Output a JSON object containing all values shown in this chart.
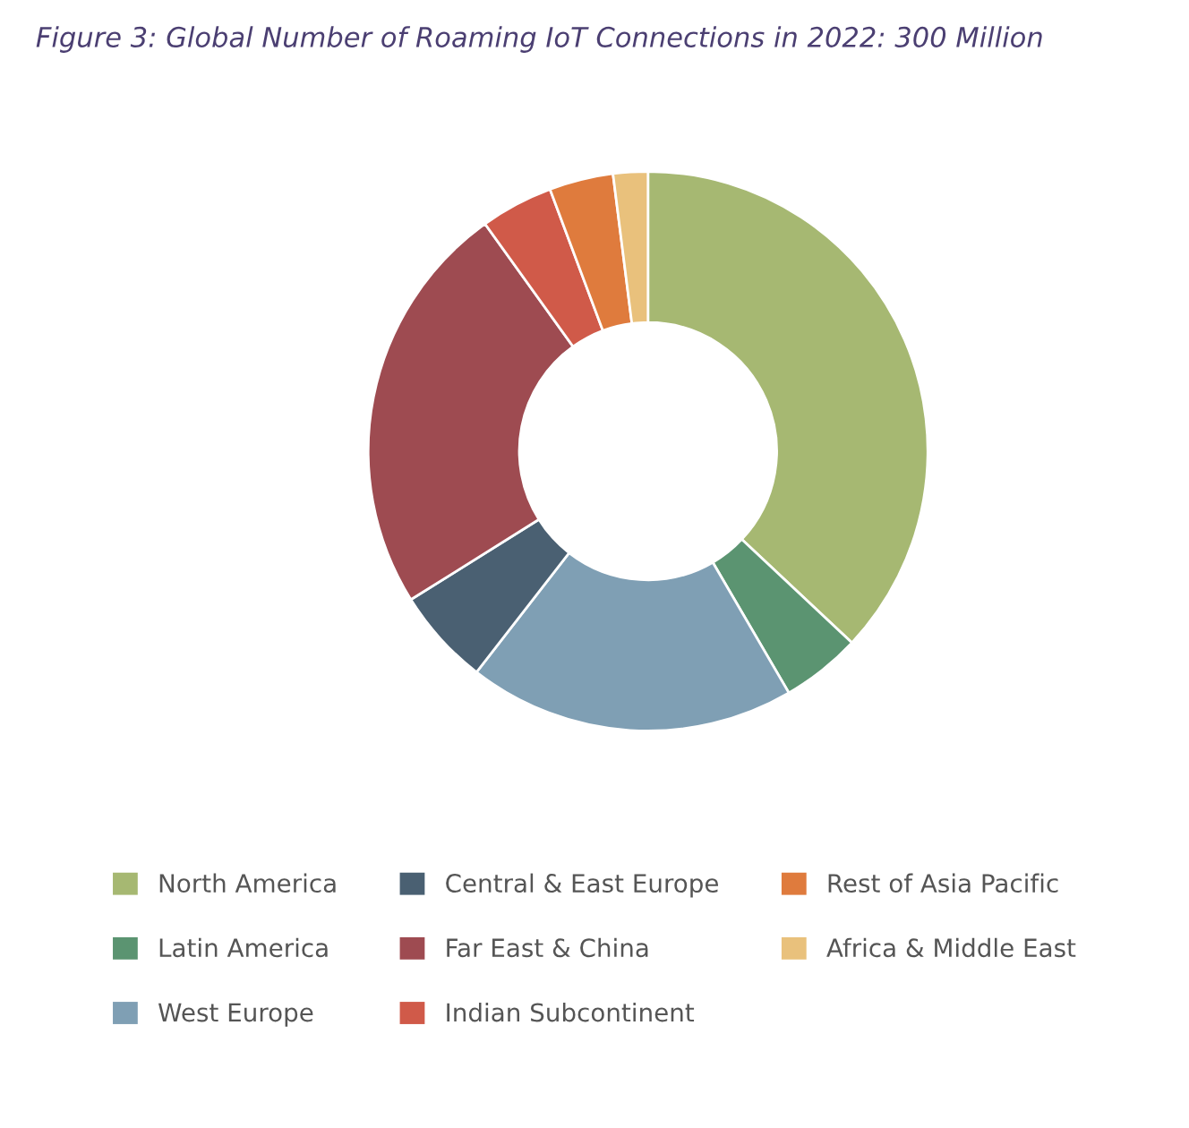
{
  "chart_data": {
    "type": "donut",
    "title": "Figure 3: Global Number of Roaming IoT Connections in 2022: 300 Million",
    "categories": [
      "North America",
      "Latin America",
      "West Europe",
      "Central & East Europe",
      "Far East & China",
      "Indian Subcontinent",
      "Rest of Asia Pacific",
      "Africa & Middle East"
    ],
    "values": [
      37,
      4.6,
      18.9,
      5.6,
      24,
      4.2,
      3.7,
      2.0
    ],
    "colors": [
      "#a6b872",
      "#5b9471",
      "#7f9fb4",
      "#4a6072",
      "#9e4b51",
      "#d05a49",
      "#df7b3d",
      "#e9c17c"
    ],
    "legend": "bottom"
  }
}
